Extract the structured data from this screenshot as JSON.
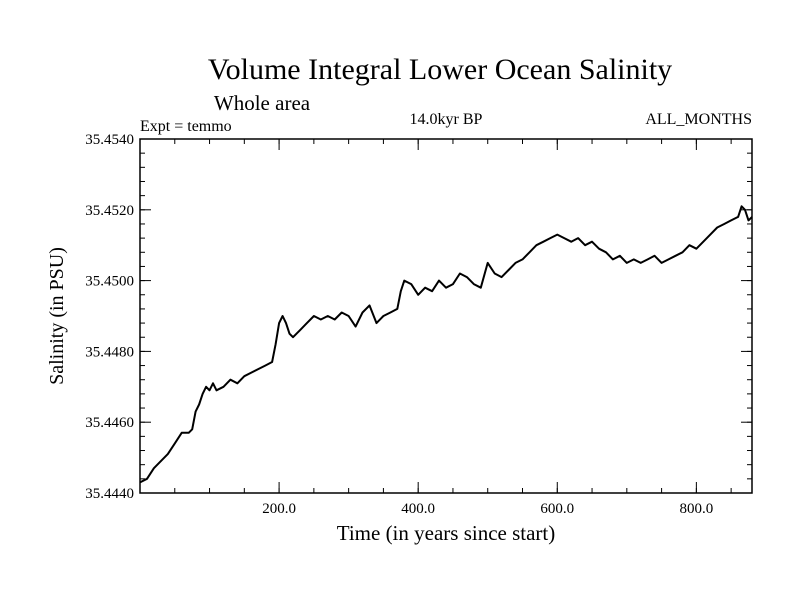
{
  "chart_data": {
    "type": "line",
    "title": "Volume Integral Lower Ocean Salinity",
    "subtitle": "Whole area",
    "annotations": {
      "left": "Expt = temmo",
      "center": "14.0kyr BP",
      "right": "ALL_MONTHS"
    },
    "xlabel": "Time (in years since start)",
    "ylabel": "Salinity (in PSU)",
    "xlim": [
      0,
      880
    ],
    "ylim": [
      35.444,
      35.454
    ],
    "x_ticks": [
      {
        "value": 200,
        "label": "200.0"
      },
      {
        "value": 400,
        "label": "400.0"
      },
      {
        "value": 600,
        "label": "600.0"
      },
      {
        "value": 800,
        "label": "800.0"
      }
    ],
    "y_ticks": [
      {
        "value": 35.444,
        "label": "35.4440"
      },
      {
        "value": 35.446,
        "label": "35.4460"
      },
      {
        "value": 35.448,
        "label": "35.4480"
      },
      {
        "value": 35.45,
        "label": "35.4500"
      },
      {
        "value": 35.452,
        "label": "35.4520"
      },
      {
        "value": 35.454,
        "label": "35.4540"
      }
    ],
    "x_minor_step": 50,
    "y_minor_step": 0.0004,
    "grid": false,
    "line_color": "#000000",
    "series": [
      {
        "name": "Lower ocean salinity",
        "x": [
          0,
          10,
          20,
          30,
          40,
          50,
          60,
          70,
          75,
          80,
          85,
          90,
          95,
          100,
          105,
          110,
          120,
          130,
          140,
          150,
          160,
          170,
          180,
          190,
          195,
          200,
          205,
          210,
          215,
          220,
          230,
          240,
          250,
          260,
          270,
          280,
          290,
          300,
          310,
          320,
          330,
          340,
          350,
          360,
          370,
          375,
          380,
          390,
          400,
          410,
          420,
          430,
          440,
          450,
          460,
          470,
          480,
          490,
          500,
          510,
          520,
          530,
          540,
          550,
          560,
          570,
          580,
          590,
          600,
          610,
          620,
          630,
          640,
          650,
          660,
          670,
          680,
          690,
          700,
          710,
          720,
          730,
          740,
          750,
          760,
          770,
          780,
          790,
          800,
          810,
          820,
          830,
          840,
          850,
          860,
          865,
          870,
          875,
          880
        ],
        "values": [
          35.4443,
          35.4444,
          35.4447,
          35.4449,
          35.4451,
          35.4454,
          35.4457,
          35.4457,
          35.4458,
          35.4463,
          35.4465,
          35.4468,
          35.447,
          35.4469,
          35.4471,
          35.4469,
          35.447,
          35.4472,
          35.4471,
          35.4473,
          35.4474,
          35.4475,
          35.4476,
          35.4477,
          35.4482,
          35.4488,
          35.449,
          35.4488,
          35.4485,
          35.4484,
          35.4486,
          35.4488,
          35.449,
          35.4489,
          35.449,
          35.4489,
          35.4491,
          35.449,
          35.4487,
          35.4491,
          35.4493,
          35.4488,
          35.449,
          35.4491,
          35.4492,
          35.4497,
          35.45,
          35.4499,
          35.4496,
          35.4498,
          35.4497,
          35.45,
          35.4498,
          35.4499,
          35.4502,
          35.4501,
          35.4499,
          35.4498,
          35.4505,
          35.4502,
          35.4501,
          35.4503,
          35.4505,
          35.4506,
          35.4508,
          35.451,
          35.4511,
          35.4512,
          35.4513,
          35.4512,
          35.4511,
          35.4512,
          35.451,
          35.4511,
          35.4509,
          35.4508,
          35.4506,
          35.4507,
          35.4505,
          35.4506,
          35.4505,
          35.4506,
          35.4507,
          35.4505,
          35.4506,
          35.4507,
          35.4508,
          35.451,
          35.4509,
          35.4511,
          35.4513,
          35.4515,
          35.4516,
          35.4517,
          35.4518,
          35.4521,
          35.452,
          35.4517,
          35.4518
        ]
      }
    ]
  }
}
